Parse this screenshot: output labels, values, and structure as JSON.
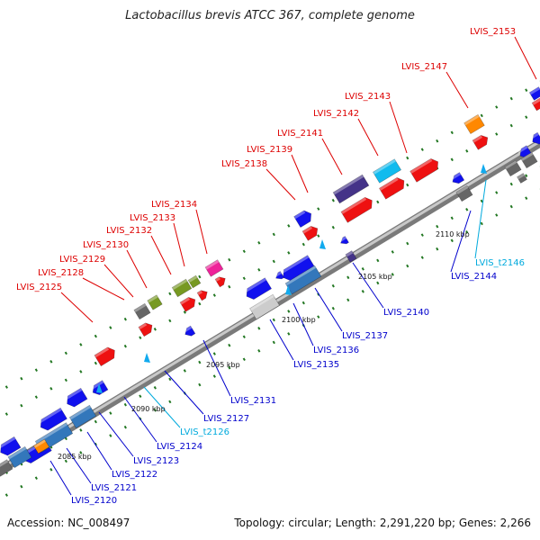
{
  "title": "Lactobacillus brevis ATCC 367, complete genome",
  "footer": {
    "accession": "Accession: NC_008497",
    "summary": "Topology: circular; Length: 2,291,220 bp; Genes: 2,266"
  },
  "colors": {
    "forward_label": "#dd0000",
    "reverse_label": "#0000cc",
    "trna_label": "#00aadd",
    "backbone": "#aaaaaa",
    "ticks": "#227722"
  },
  "ticks": [
    {
      "label": "2085 kbp"
    },
    {
      "label": "2090 kbp"
    },
    {
      "label": "2095 kbp"
    },
    {
      "label": "2100 kbp"
    },
    {
      "label": "2105 kbp"
    },
    {
      "label": "2110 kbp"
    }
  ],
  "gene_labels": [
    {
      "id": "LVIS_2125",
      "strand": "forward"
    },
    {
      "id": "LVIS_2128",
      "strand": "forward"
    },
    {
      "id": "LVIS_2129",
      "strand": "forward"
    },
    {
      "id": "LVIS_2130",
      "strand": "forward"
    },
    {
      "id": "LVIS_2132",
      "strand": "forward"
    },
    {
      "id": "LVIS_2133",
      "strand": "forward"
    },
    {
      "id": "LVIS_2134",
      "strand": "forward"
    },
    {
      "id": "LVIS_2138",
      "strand": "forward"
    },
    {
      "id": "LVIS_2139",
      "strand": "forward"
    },
    {
      "id": "LVIS_2141",
      "strand": "forward"
    },
    {
      "id": "LVIS_2142",
      "strand": "forward"
    },
    {
      "id": "LVIS_2143",
      "strand": "forward"
    },
    {
      "id": "LVIS_2147",
      "strand": "forward"
    },
    {
      "id": "LVIS_2153",
      "strand": "forward"
    },
    {
      "id": "LVIS_2120",
      "strand": "reverse"
    },
    {
      "id": "LVIS_2121",
      "strand": "reverse"
    },
    {
      "id": "LVIS_2122",
      "strand": "reverse"
    },
    {
      "id": "LVIS_2123",
      "strand": "reverse"
    },
    {
      "id": "LVIS_2124",
      "strand": "reverse"
    },
    {
      "id": "LVIS_t2126",
      "strand": "trna"
    },
    {
      "id": "LVIS_2127",
      "strand": "reverse"
    },
    {
      "id": "LVIS_2131",
      "strand": "reverse"
    },
    {
      "id": "LVIS_2135",
      "strand": "reverse"
    },
    {
      "id": "LVIS_2136",
      "strand": "reverse"
    },
    {
      "id": "LVIS_2137",
      "strand": "reverse"
    },
    {
      "id": "LVIS_2140",
      "strand": "reverse"
    },
    {
      "id": "LVIS_2144",
      "strand": "reverse"
    },
    {
      "id": "LVIS_t2146",
      "strand": "trna"
    }
  ]
}
